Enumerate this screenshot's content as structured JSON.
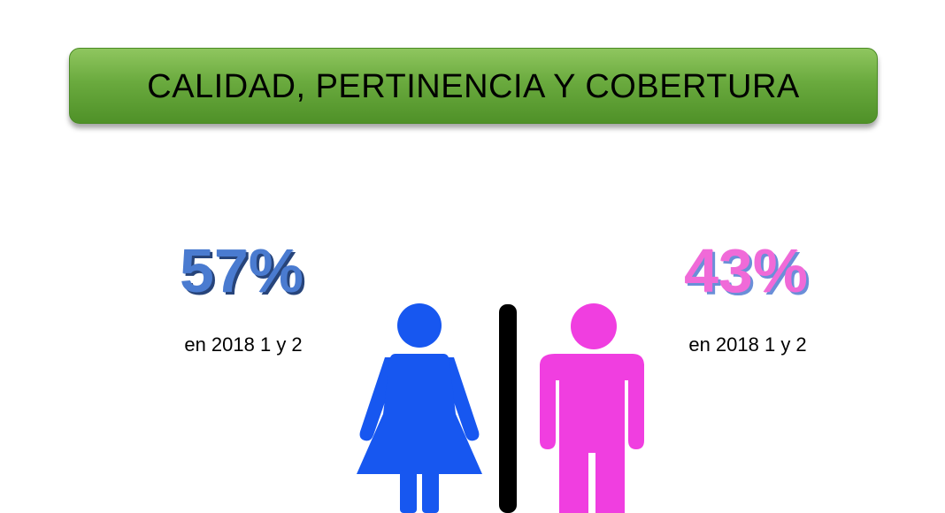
{
  "header": {
    "title": "CALIDAD, PERTINENCIA Y COBERTURA"
  },
  "stats": {
    "left": {
      "percent": "57%",
      "caption": "en 2018 1 y 2",
      "color": "#4a7bd0"
    },
    "right": {
      "percent": "43%",
      "caption": "en 2018 1 y 2",
      "color": "#f06ad8"
    }
  },
  "figures": {
    "left_icon": "woman-icon",
    "left_color": "#1757f0",
    "divider_color": "#000000",
    "right_icon": "man-icon",
    "right_color": "#f03ee0"
  }
}
